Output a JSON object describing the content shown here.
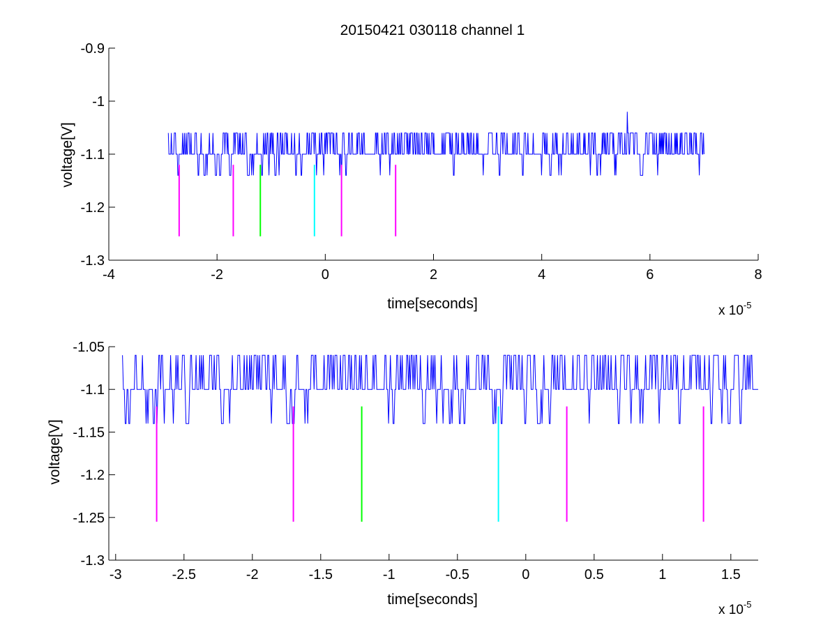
{
  "figure": {
    "title": "20150421 030118 channel 1"
  },
  "chart_data": [
    {
      "type": "line",
      "title": "20150421 030118 channel 1",
      "xlabel": "time[seconds]",
      "ylabel": "voltage[V]",
      "x_scale_label": "x 10",
      "x_scale_exponent": "-5",
      "xlim": [
        -4,
        8
      ],
      "ylim": [
        -1.3,
        -0.9
      ],
      "x_ticks": [
        -4,
        -2,
        0,
        2,
        4,
        6,
        8
      ],
      "x_tick_labels": [
        "-4",
        "-2",
        "0",
        "2",
        "4",
        "6",
        "8"
      ],
      "y_ticks": [
        -0.9,
        -1.0,
        -1.1,
        -1.2,
        -1.3
      ],
      "y_tick_labels": [
        "-0.9",
        "-1",
        "-1.1",
        "-1.2",
        "-1.3"
      ],
      "grid": false,
      "series": [
        {
          "style": "noisy-trace",
          "color": "#0000ff",
          "x_range": [
            -2.9,
            7.0
          ],
          "baseline": -1.1,
          "high_level": -1.06,
          "low_level": -1.14,
          "spike": {
            "x": 5.58,
            "y": -1.02
          }
        }
      ],
      "markers": [
        {
          "x": -2.7,
          "y_top": -1.12,
          "y_bottom": -1.255,
          "color": "#ff00ff"
        },
        {
          "x": -1.7,
          "y_top": -1.12,
          "y_bottom": -1.255,
          "color": "#ff00ff"
        },
        {
          "x": -1.2,
          "y_top": -1.12,
          "y_bottom": -1.255,
          "color": "#00ff00"
        },
        {
          "x": -0.2,
          "y_top": -1.12,
          "y_bottom": -1.255,
          "color": "#00ffff"
        },
        {
          "x": 0.3,
          "y_top": -1.12,
          "y_bottom": -1.255,
          "color": "#ff00ff"
        },
        {
          "x": 1.3,
          "y_top": -1.12,
          "y_bottom": -1.255,
          "color": "#ff00ff"
        }
      ]
    },
    {
      "type": "line",
      "xlabel": "time[seconds]",
      "ylabel": "voltage[V]",
      "x_scale_label": "x 10",
      "x_scale_exponent": "-5",
      "xlim": [
        -3.05,
        1.7
      ],
      "ylim": [
        -1.3,
        -1.05
      ],
      "x_ticks": [
        -3,
        -2.5,
        -2,
        -1.5,
        -1,
        -0.5,
        0,
        0.5,
        1,
        1.5
      ],
      "x_tick_labels": [
        "-3",
        "-2.5",
        "-2",
        "-1.5",
        "-1",
        "-0.5",
        "0",
        "0.5",
        "1",
        "1.5"
      ],
      "y_ticks": [
        -1.05,
        -1.1,
        -1.15,
        -1.2,
        -1.25,
        -1.3
      ],
      "y_tick_labels": [
        "-1.05",
        "-1.1",
        "-1.15",
        "-1.2",
        "-1.25",
        "-1.3"
      ],
      "grid": false,
      "series": [
        {
          "style": "noisy-trace",
          "color": "#0000ff",
          "x_range": [
            -2.95,
            1.7
          ],
          "baseline": -1.1,
          "high_level": -1.06,
          "low_level": -1.14
        }
      ],
      "markers": [
        {
          "x": -2.7,
          "y_top": -1.12,
          "y_bottom": -1.255,
          "color": "#ff00ff"
        },
        {
          "x": -1.7,
          "y_top": -1.12,
          "y_bottom": -1.255,
          "color": "#ff00ff"
        },
        {
          "x": -1.2,
          "y_top": -1.12,
          "y_bottom": -1.255,
          "color": "#00ff00"
        },
        {
          "x": -0.2,
          "y_top": -1.12,
          "y_bottom": -1.255,
          "color": "#00ffff"
        },
        {
          "x": 0.3,
          "y_top": -1.12,
          "y_bottom": -1.255,
          "color": "#ff00ff"
        },
        {
          "x": 1.3,
          "y_top": -1.12,
          "y_bottom": -1.255,
          "color": "#ff00ff"
        }
      ]
    }
  ]
}
